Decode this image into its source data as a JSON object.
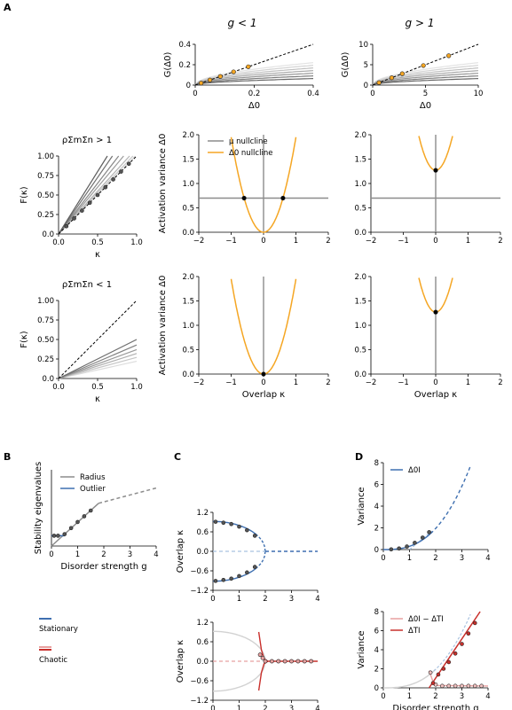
{
  "panels": {
    "A": "A",
    "B": "B",
    "C": "C",
    "D": "D"
  },
  "colors": {
    "orange": "#f5a623",
    "gray": "#8c8c8c",
    "lightgray": "#d2d2d2",
    "blue": "#3e6fb0",
    "lightblue": "#a9c2e0",
    "red": "#c9302c",
    "lightred": "#e8a1a0",
    "black": "#000000"
  },
  "top_titles": {
    "left": "g < 1",
    "right": "g > 1"
  },
  "row_titles": {
    "top": "ρΣmΣn > 1",
    "bottom": "ρΣmΣn < 1"
  },
  "legend_A": {
    "mu": "μ nullcline",
    "delta": "Δ0 nullcline"
  },
  "legend_B": {
    "radius": "Radius",
    "outlier": "Outlier"
  },
  "legend_D": {
    "top": "Δ0I",
    "bottom_a": "Δ0I − ΔTI",
    "bottom_b": "ΔTI"
  },
  "legend_bottom": {
    "stationary": "Stationary",
    "chaotic": "Chaotic"
  },
  "chart_data": [
    {
      "id": "A-G-left",
      "type": "line",
      "xlabel": "Δ0",
      "ylabel": "G(Δ0)",
      "xlim": [
        0,
        0.4
      ],
      "ylim": [
        0,
        0.4
      ],
      "xticks": [
        "0",
        "0.2",
        "0.4"
      ],
      "yticks": [
        "0",
        "0.2",
        "0.4"
      ],
      "points_x": [
        0.02,
        0.05,
        0.085,
        0.13,
        0.18
      ],
      "points_y": [
        0.02,
        0.05,
        0.085,
        0.13,
        0.18
      ]
    },
    {
      "id": "A-G-right",
      "type": "line",
      "xlabel": "Δ0",
      "ylabel": "G(Δ0)",
      "xlim": [
        0,
        10
      ],
      "ylim": [
        0,
        10
      ],
      "xticks": [
        "0",
        "5",
        "10"
      ],
      "yticks": [
        "0",
        "5",
        "10"
      ],
      "points_x": [
        0.6,
        1.8,
        2.8,
        4.8,
        7.2
      ],
      "points_y": [
        0.6,
        1.8,
        2.8,
        4.8,
        7.2
      ]
    },
    {
      "id": "A-F-top",
      "type": "line",
      "xlabel": "κ",
      "ylabel": "F(κ)",
      "xlim": [
        0,
        1.0
      ],
      "ylim": [
        0,
        1.0
      ],
      "xticks": [
        "0.0",
        "0.5",
        "1.0"
      ],
      "yticks": [
        "0.0",
        "0.25",
        "0.50",
        "0.75",
        "1.00"
      ],
      "slopes": [
        1.02,
        1.05,
        1.1,
        1.2,
        1.3,
        1.45,
        1.6
      ],
      "points_x": [
        0.1,
        0.2,
        0.3,
        0.4,
        0.5,
        0.6,
        0.7,
        0.8,
        0.9
      ],
      "points_y": [
        0.1,
        0.2,
        0.3,
        0.4,
        0.5,
        0.6,
        0.7,
        0.8,
        0.9
      ]
    },
    {
      "id": "A-F-bottom",
      "type": "line",
      "xlabel": "κ",
      "ylabel": "F(κ)",
      "xlim": [
        0,
        1.0
      ],
      "ylim": [
        0,
        1.0
      ],
      "xticks": [
        "0.0",
        "0.5",
        "1.0"
      ],
      "yticks": [
        "0.0",
        "0.25",
        "0.50",
        "0.75",
        "1.00"
      ],
      "slopes": [
        0.22,
        0.27,
        0.32,
        0.37,
        0.43,
        0.5
      ]
    },
    {
      "id": "A-null-top-left",
      "type": "line",
      "xlabel": "",
      "ylabel": "Activation variance Δ0",
      "xlim": [
        -2,
        2
      ],
      "ylim": [
        0,
        2.0
      ],
      "xticks": [
        "−2",
        "−1",
        "0",
        "1",
        "2"
      ],
      "yticks": [
        "0.0",
        "0.5",
        "1.0",
        "1.5",
        "2.0"
      ],
      "mu_y": 0.7,
      "parabola_min": 0.0,
      "parabola_a": 1.95,
      "fixed_points": [
        [
          -0.6,
          0.7
        ],
        [
          0.6,
          0.7
        ]
      ]
    },
    {
      "id": "A-null-top-right",
      "type": "line",
      "xlabel": "",
      "ylabel": "",
      "xlim": [
        -2,
        2
      ],
      "ylim": [
        0,
        2.0
      ],
      "xticks": [
        "−2",
        "−1",
        "0",
        "1",
        "2"
      ],
      "yticks": [
        "0.0",
        "0.5",
        "1.0",
        "1.5",
        "2.0"
      ],
      "mu_y": 0.7,
      "parabola_min": 1.27,
      "parabola_a": 2.6,
      "fixed_points": [
        [
          0,
          1.27
        ]
      ]
    },
    {
      "id": "A-null-bottom-left",
      "type": "line",
      "xlabel": "Overlap κ",
      "ylabel": "Activation variance Δ0",
      "xlim": [
        -2,
        2
      ],
      "ylim": [
        0,
        2.0
      ],
      "xticks": [
        "−2",
        "−1",
        "0",
        "1",
        "2"
      ],
      "yticks": [
        "0.0",
        "0.5",
        "1.0",
        "1.5",
        "2.0"
      ],
      "mu_y": null,
      "parabola_min": 0.0,
      "parabola_a": 1.95,
      "fixed_points": [
        [
          0,
          0
        ]
      ]
    },
    {
      "id": "A-null-bottom-right",
      "type": "line",
      "xlabel": "Overlap κ",
      "ylabel": "",
      "xlim": [
        -2,
        2
      ],
      "ylim": [
        0,
        2.0
      ],
      "xticks": [
        "−2",
        "−1",
        "0",
        "1",
        "2"
      ],
      "yticks": [
        "0.0",
        "0.5",
        "1.0",
        "1.5",
        "2.0"
      ],
      "mu_y": null,
      "parabola_min": 1.27,
      "parabola_a": 2.6,
      "fixed_points": [
        [
          0,
          1.27
        ]
      ]
    },
    {
      "id": "B",
      "type": "line",
      "xlabel": "Disorder strength g",
      "ylabel": "Stability eigenvalues",
      "xlim": [
        0,
        4
      ],
      "ylim": [
        0,
        2.0
      ],
      "xticks": [
        "0",
        "1",
        "2",
        "3",
        "4"
      ],
      "radius_x": [
        0,
        1.8
      ],
      "radius_dashed_x": [
        1.8,
        4
      ],
      "radius_y_end": 1.12,
      "radius_dashed_end": 1.52,
      "outlier_x": [
        0,
        0.5
      ],
      "outlier_y": 0.27,
      "points_x": [
        0.1,
        0.25,
        0.5,
        0.75,
        1.0,
        1.25,
        1.5
      ],
      "points_y": [
        0.27,
        0.27,
        0.31,
        0.47,
        0.63,
        0.78,
        0.93
      ]
    },
    {
      "id": "C-top",
      "type": "line",
      "xlabel": "",
      "ylabel": "Overlap κ",
      "xlim": [
        0,
        4
      ],
      "ylim": [
        -1.2,
        1.2
      ],
      "xticks": [
        "0",
        "1",
        "2",
        "3",
        "4"
      ],
      "yticks": [
        "−1.2",
        "−0.6",
        "0.0",
        "0.6",
        "1.2"
      ],
      "bifurcation_g": 2.0,
      "amplitude": 0.92,
      "points_x": [
        0.1,
        0.4,
        0.7,
        1.0,
        1.3,
        1.6
      ],
      "points_y_pos": [
        0.91,
        0.88,
        0.84,
        0.76,
        0.65,
        0.48
      ]
    },
    {
      "id": "C-bottom",
      "type": "line",
      "xlabel": "Disorder strength g",
      "ylabel": "Overlap κ",
      "xlim": [
        0,
        4
      ],
      "ylim": [
        -1.2,
        1.2
      ],
      "xticks": [
        "0",
        "1",
        "2",
        "3",
        "4"
      ],
      "yticks": [
        "−1.2",
        "−0.6",
        "0.0",
        "0.6",
        "1.2"
      ],
      "points_x": [
        1.8,
        1.9,
        2.0,
        2.25,
        2.5,
        2.75,
        3.0,
        3.25,
        3.5,
        3.75
      ],
      "points_y": [
        0.2,
        0.1,
        0.0,
        0.0,
        0.0,
        0.0,
        0.0,
        0.0,
        0.0,
        0.0
      ]
    },
    {
      "id": "D-top",
      "type": "line",
      "xlabel": "",
      "ylabel": "Variance",
      "xlim": [
        0,
        4
      ],
      "ylim": [
        0,
        8
      ],
      "xticks": [
        "0",
        "1",
        "2",
        "3",
        "4"
      ],
      "yticks": [
        "0",
        "2",
        "4",
        "6",
        "8"
      ],
      "points_x": [
        0.3,
        0.6,
        0.9,
        1.2,
        1.5,
        1.75
      ],
      "points_y": [
        0.02,
        0.1,
        0.28,
        0.62,
        1.1,
        1.6
      ]
    },
    {
      "id": "D-bottom",
      "type": "line",
      "xlabel": "Disorder strength g",
      "ylabel": "Variance",
      "xlim": [
        0,
        4
      ],
      "ylim": [
        0,
        8
      ],
      "xticks": [
        "0",
        "1",
        "2",
        "3",
        "4"
      ],
      "yticks": [
        "0",
        "2",
        "4",
        "6",
        "8"
      ],
      "points_x": [
        1.9,
        2.1,
        2.3,
        2.5,
        2.75,
        3.0,
        3.25,
        3.5
      ],
      "points_y": [
        0.5,
        1.4,
        2.0,
        2.7,
        3.6,
        4.6,
        5.7,
        6.8
      ],
      "low_points_x": [
        1.8,
        2.0,
        2.25,
        2.5,
        2.75,
        3.0,
        3.25,
        3.5,
        3.75
      ],
      "low_points_y": [
        1.6,
        0.35,
        0.2,
        0.2,
        0.2,
        0.2,
        0.2,
        0.2,
        0.2
      ]
    }
  ]
}
